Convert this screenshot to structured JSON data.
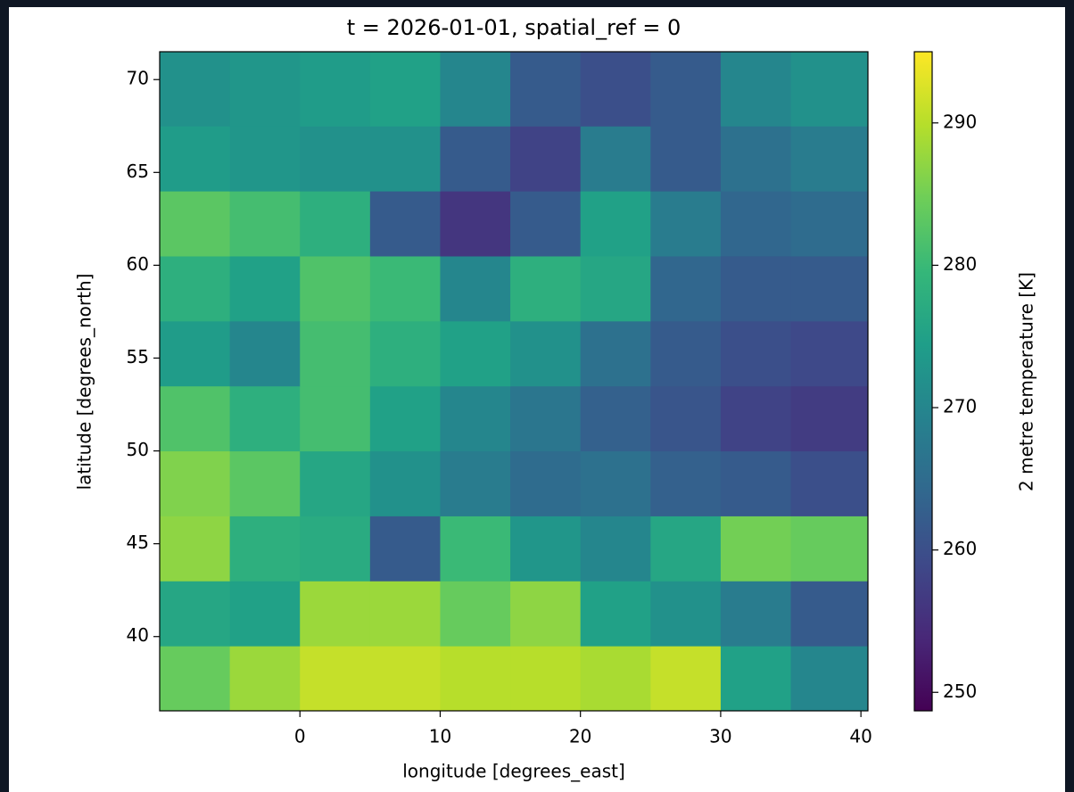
{
  "chart_data": {
    "type": "heatmap",
    "title": "t = 2026-01-01, spatial_ref = 0",
    "x_label": "longitude [degrees_east]",
    "y_label": "latitude [degrees_north]",
    "colorbar_label": "2 metre temperature [K]",
    "colormap": "viridis",
    "x_edges": [
      -10,
      -5,
      0,
      5,
      10,
      15,
      20,
      25,
      30,
      35,
      40.5
    ],
    "y_edges": [
      36,
      39.5,
      43,
      46.5,
      50,
      53.5,
      57,
      60.5,
      64,
      67.5,
      71.5
    ],
    "values": [
      [
        284,
        288,
        291,
        291,
        290,
        290,
        289,
        291,
        275,
        270
      ],
      [
        276,
        275,
        288,
        288,
        284,
        287,
        275,
        272,
        268,
        262
      ],
      [
        287,
        278,
        277,
        262,
        280,
        273,
        270,
        276,
        285,
        284
      ],
      [
        286,
        283,
        276,
        272,
        268,
        265,
        266,
        263,
        262,
        260
      ],
      [
        282,
        278,
        281,
        275,
        270,
        267,
        263,
        261,
        258,
        257
      ],
      [
        274,
        270,
        281,
        278,
        275,
        272,
        266,
        262,
        260,
        259
      ],
      [
        278,
        275,
        282,
        280,
        270,
        278,
        276,
        264,
        262,
        262
      ],
      [
        283,
        281,
        278,
        262,
        256,
        262,
        275,
        268,
        264,
        265
      ],
      [
        274,
        273,
        272,
        272,
        262,
        258,
        268,
        262,
        266,
        268
      ],
      [
        272,
        273,
        274,
        275,
        270,
        262,
        260,
        262,
        270,
        272
      ]
    ],
    "xlim": [
      -10,
      40.5
    ],
    "ylim": [
      36,
      71.5
    ],
    "xticks": [
      0,
      10,
      20,
      30,
      40
    ],
    "yticks": [
      40,
      45,
      50,
      55,
      60,
      65,
      70
    ],
    "clim": [
      248.7,
      295
    ],
    "cticks": [
      250,
      260,
      270,
      280,
      290
    ]
  }
}
